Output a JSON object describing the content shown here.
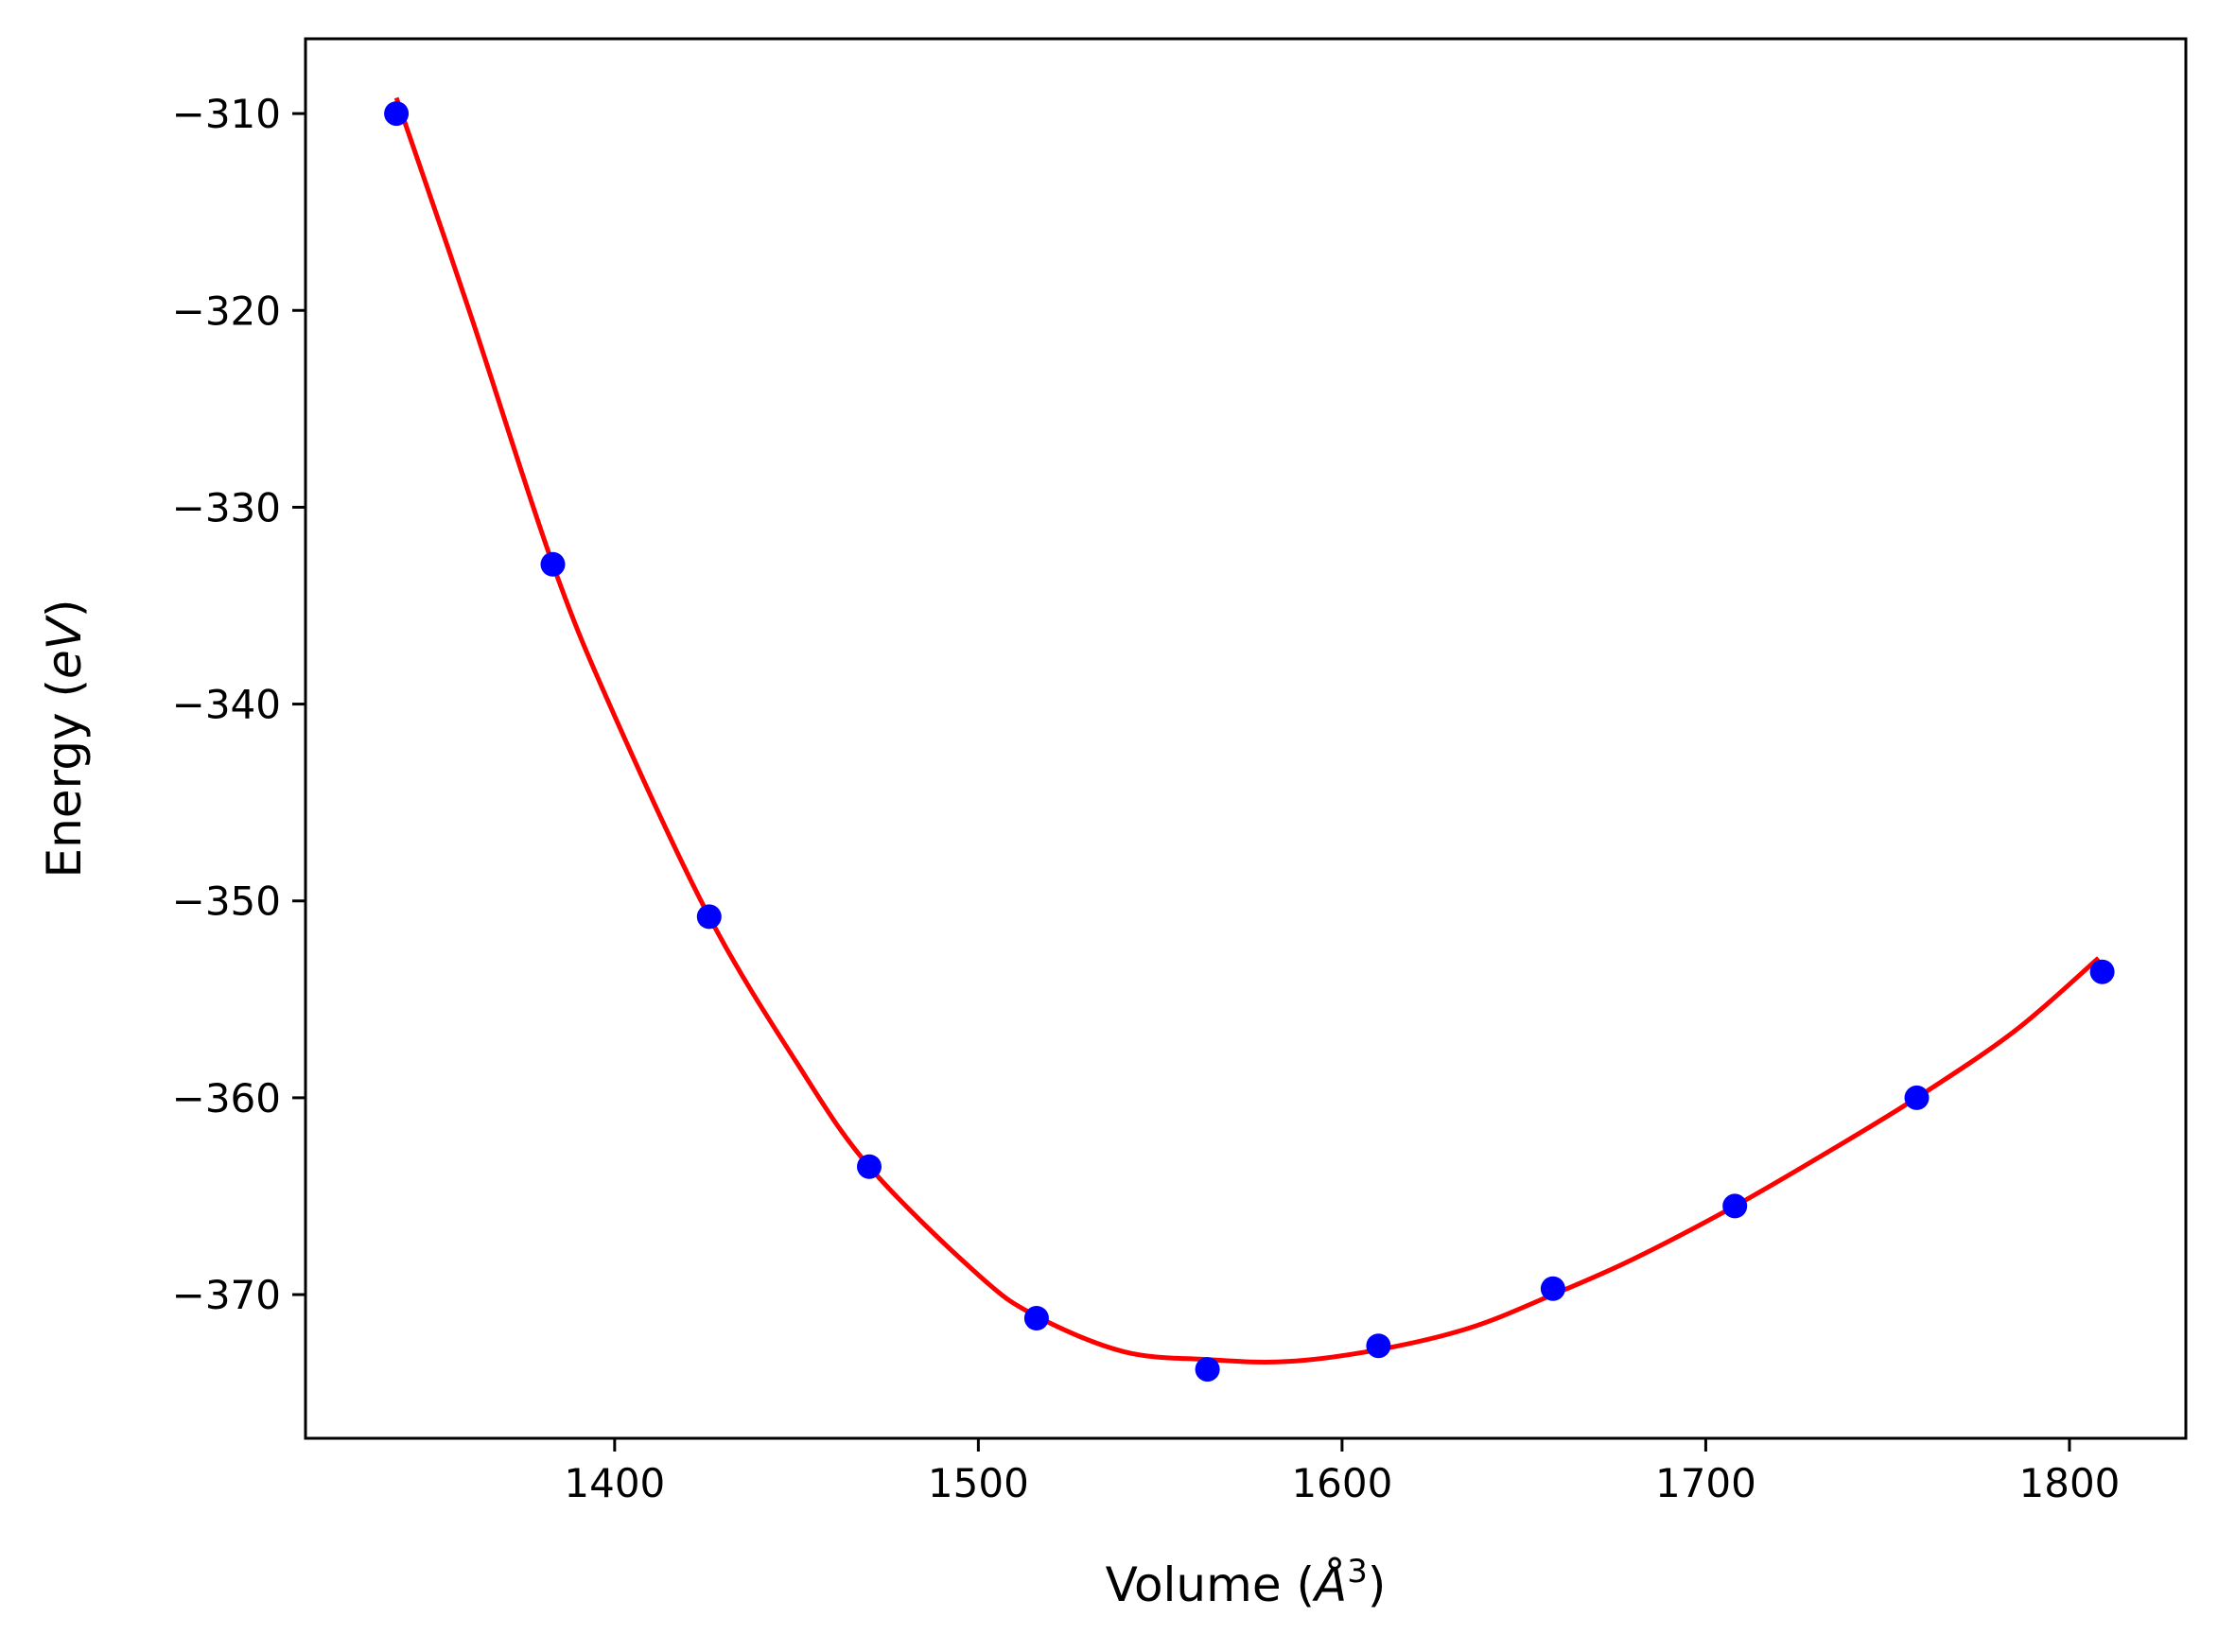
{
  "chart_data": {
    "type": "scatter",
    "title": "",
    "xlabel": {
      "prefix": "Volume (",
      "unit": "Å",
      "power": "3",
      "suffix": ")"
    },
    "ylabel": {
      "prefix": "Energy (",
      "unit": "eV",
      "suffix": ")"
    },
    "xlim": [
      1315,
      1832
    ],
    "ylim": [
      -377.3,
      -306.2
    ],
    "xticks": [
      1400,
      1500,
      1600,
      1700,
      1800
    ],
    "xtick_labels": [
      "1400",
      "1500",
      "1600",
      "1700",
      "1800"
    ],
    "yticks": [
      -310,
      -320,
      -330,
      -340,
      -350,
      -360,
      -370
    ],
    "ytick_labels": [
      "−310",
      "−320",
      "−330",
      "−340",
      "−350",
      "−360",
      "−370"
    ],
    "grid": false,
    "legend": false,
    "series": [
      {
        "kind": "points",
        "color": "#0000ff",
        "x": [
          1340,
          1383,
          1426,
          1470,
          1516,
          1563,
          1610,
          1658,
          1708,
          1758,
          1809
        ],
        "y": [
          -310.0,
          -332.9,
          -350.8,
          -363.5,
          -371.2,
          -373.8,
          -372.6,
          -369.7,
          -365.5,
          -360.0,
          -353.6
        ]
      },
      {
        "kind": "fit-line",
        "color": "#ff0000",
        "x": [
          1340,
          1360,
          1383,
          1400,
          1426,
          1450,
          1470,
          1500,
          1516,
          1540,
          1563,
          1585,
          1610,
          1635,
          1658,
          1680,
          1708,
          1735,
          1758,
          1785,
          1808
        ],
        "y": [
          -309.2,
          -320.0,
          -332.9,
          -340.6,
          -350.8,
          -358.2,
          -363.5,
          -369.0,
          -371.1,
          -372.9,
          -373.3,
          -373.4,
          -372.8,
          -371.7,
          -370.0,
          -368.2,
          -365.5,
          -362.6,
          -360.0,
          -356.6,
          -352.9
        ]
      }
    ]
  }
}
